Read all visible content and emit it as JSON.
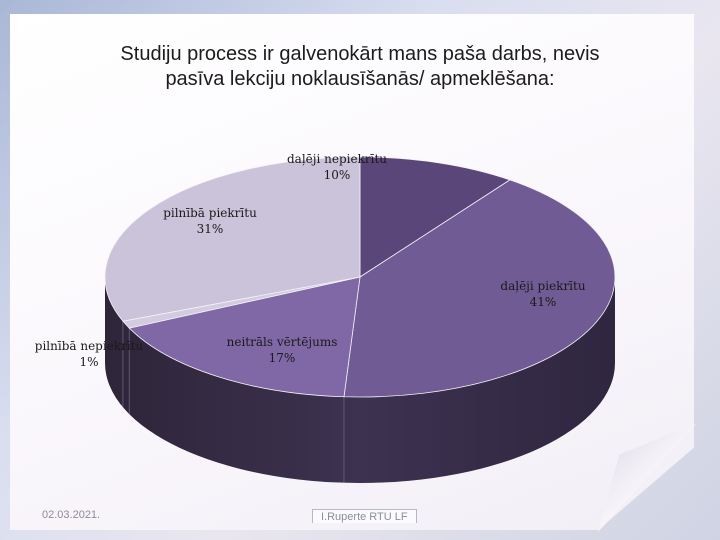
{
  "slide": {
    "title_line1": "Studiju process ir galvenokārt mans paša darbs, nevis",
    "title_line2": "pasīva lekciju noklausīšanās/ apmeklēšana:",
    "footer_date": "02.03.2021.",
    "footer_author": "I.Ruperte RTU LF"
  },
  "chart_data": {
    "type": "pie",
    "title": "Studiju process ir galvenokārt mans paša darbs, nevis pasīva lekciju noklausīšanās/ apmeklēšana:",
    "three_d": true,
    "slices": [
      {
        "label": "daļēji nepiekrītu",
        "value": 10,
        "pct_label": "10%",
        "color": "#5b4679"
      },
      {
        "label": "daļēji piekrītu",
        "value": 41,
        "pct_label": "41%",
        "color": "#715b95"
      },
      {
        "label": "neitrāls vērtējums",
        "value": 17,
        "pct_label": "17%",
        "color": "#8068a7"
      },
      {
        "label": "pilnībā nepiekrītu",
        "value": 1,
        "pct_label": "1%",
        "color": "#d3cbe0"
      },
      {
        "label": "pilnībā piekrītu",
        "value": 31,
        "pct_label": "31%",
        "color": "#cbc3d9"
      }
    ]
  }
}
